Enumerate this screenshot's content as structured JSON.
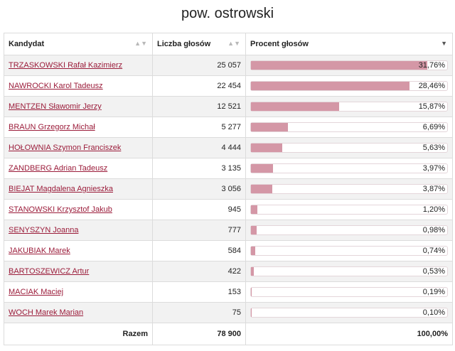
{
  "title": "pow. ostrowski",
  "columns": {
    "candidate": "Kandydat",
    "votes": "Liczba głosów",
    "percent": "Procent głosów"
  },
  "sort_icons": {
    "candidate": "sort-icon",
    "votes": "sort-icon",
    "percent": "sort-desc-icon"
  },
  "colors": {
    "bar": "#d497a6",
    "link": "#9b1c3a",
    "row_alt": "#f2f2f2"
  },
  "rows": [
    {
      "name": "TRZASKOWSKI Rafał Kazimierz",
      "votes": "25 057",
      "percent": "31,76%",
      "fraction": 0.3176
    },
    {
      "name": "NAWROCKI Karol Tadeusz",
      "votes": "22 454",
      "percent": "28,46%",
      "fraction": 0.2846
    },
    {
      "name": "MENTZEN Sławomir Jerzy",
      "votes": "12 521",
      "percent": "15,87%",
      "fraction": 0.1587
    },
    {
      "name": "BRAUN Grzegorz Michał",
      "votes": "5 277",
      "percent": "6,69%",
      "fraction": 0.0669
    },
    {
      "name": "HOŁOWNIA Szymon Franciszek",
      "votes": "4 444",
      "percent": "5,63%",
      "fraction": 0.0563
    },
    {
      "name": "ZANDBERG Adrian Tadeusz",
      "votes": "3 135",
      "percent": "3,97%",
      "fraction": 0.0397
    },
    {
      "name": "BIEJAT Magdalena Agnieszka",
      "votes": "3 056",
      "percent": "3,87%",
      "fraction": 0.0387
    },
    {
      "name": "STANOWSKI Krzysztof Jakub",
      "votes": "945",
      "percent": "1,20%",
      "fraction": 0.012
    },
    {
      "name": "SENYSZYN Joanna",
      "votes": "777",
      "percent": "0,98%",
      "fraction": 0.0098
    },
    {
      "name": "JAKUBIAK Marek",
      "votes": "584",
      "percent": "0,74%",
      "fraction": 0.0074
    },
    {
      "name": "BARTOSZEWICZ Artur",
      "votes": "422",
      "percent": "0,53%",
      "fraction": 0.0053
    },
    {
      "name": "MACIAK Maciej",
      "votes": "153",
      "percent": "0,19%",
      "fraction": 0.0019
    },
    {
      "name": "WOCH Marek Marian",
      "votes": "75",
      "percent": "0,10%",
      "fraction": 0.001
    }
  ],
  "total": {
    "label": "Razem",
    "votes": "78 900",
    "percent": "100,00%"
  }
}
